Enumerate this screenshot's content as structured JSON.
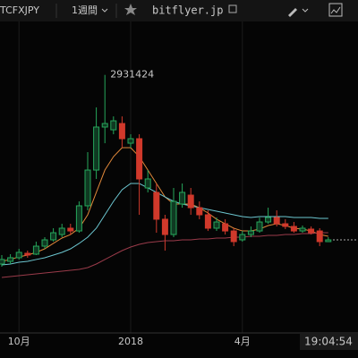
{
  "toolbar": {
    "symbol": "TCFXJPY",
    "interval": "1週間",
    "source": "bitflyer.jp"
  },
  "chart_data": {
    "type": "candlestick",
    "categories": [
      null,
      null,
      "10月",
      null,
      null,
      null,
      null,
      null,
      null,
      null,
      null,
      null,
      null,
      null,
      null,
      "2018",
      null,
      null,
      null,
      null,
      null,
      null,
      null,
      null,
      null,
      null,
      null,
      null,
      "4月",
      null,
      null,
      null,
      null,
      null,
      null,
      null,
      null,
      null,
      null
    ],
    "open": [
      381000,
      417000,
      466000,
      526000,
      514000,
      622000,
      707000,
      779000,
      864000,
      827000,
      1166000,
      1648000,
      2228000,
      2191000,
      2276000,
      2010000,
      2071000,
      1407000,
      1347000,
      985000,
      779000,
      1190000,
      1310000,
      1141000,
      1045000,
      864000,
      924000,
      827000,
      707000,
      779000,
      827000,
      948000,
      1009000,
      924000,
      888000,
      827000,
      852000,
      827000,
      683000
    ],
    "high": [
      502000,
      514000,
      586000,
      562000,
      683000,
      743000,
      864000,
      924000,
      924000,
      1226000,
      1890000,
      2493000,
      2931424,
      2372000,
      2372000,
      2131000,
      2131000,
      1648000,
      1467000,
      1045000,
      1407000,
      1467000,
      1407000,
      1226000,
      1105000,
      1009000,
      985000,
      864000,
      827000,
      888000,
      1009000,
      1141000,
      1105000,
      985000,
      948000,
      900000,
      888000,
      864000,
      743000
    ],
    "low": [
      345000,
      381000,
      442000,
      466000,
      502000,
      586000,
      683000,
      743000,
      779000,
      803000,
      1105000,
      1528000,
      2010000,
      2131000,
      1950000,
      1950000,
      1045000,
      1347000,
      803000,
      562000,
      743000,
      1141000,
      1045000,
      985000,
      827000,
      827000,
      779000,
      622000,
      683000,
      743000,
      803000,
      924000,
      888000,
      852000,
      803000,
      803000,
      779000,
      622000,
      683000
    ],
    "close": [
      442000,
      466000,
      538000,
      502000,
      622000,
      707000,
      803000,
      864000,
      827000,
      1166000,
      1648000,
      2228000,
      2276000,
      2312000,
      2071000,
      2071000,
      1528000,
      1528000,
      985000,
      779000,
      1226000,
      1347000,
      1141000,
      1045000,
      864000,
      948000,
      827000,
      683000,
      779000,
      827000,
      948000,
      1009000,
      924000,
      888000,
      827000,
      864000,
      803000,
      683000,
      707000
    ],
    "up_color": "#26a65b",
    "down_color": "#d0392b",
    "series": [
      {
        "color": "#e0883a",
        "values": [
          417000,
          442000,
          478000,
          502000,
          538000,
          586000,
          659000,
          731000,
          779000,
          864000,
          1045000,
          1347000,
          1648000,
          1829000,
          1950000,
          1950000,
          1829000,
          1648000,
          1467000,
          1286000,
          1190000,
          1190000,
          1190000,
          1141000,
          1069000,
          985000,
          924000,
          864000,
          827000,
          827000,
          852000,
          900000,
          924000,
          900000,
          864000,
          852000,
          827000,
          779000,
          755000
        ]
      },
      {
        "color": "#6cc6d0",
        "values": [
          369000,
          381000,
          405000,
          417000,
          442000,
          466000,
          502000,
          538000,
          586000,
          659000,
          743000,
          864000,
          1045000,
          1226000,
          1383000,
          1467000,
          1467000,
          1407000,
          1347000,
          1286000,
          1226000,
          1190000,
          1166000,
          1141000,
          1117000,
          1093000,
          1069000,
          1045000,
          1021000,
          1009000,
          1021000,
          1021000,
          1021000,
          1021000,
          1009000,
          1009000,
          1009000,
          997000,
          997000
        ]
      },
      {
        "color": "#9a3b4a",
        "values": [
          200000,
          212000,
          224000,
          236000,
          248000,
          260000,
          273000,
          285000,
          297000,
          309000,
          333000,
          381000,
          442000,
          502000,
          562000,
          610000,
          647000,
          671000,
          683000,
          695000,
          695000,
          707000,
          707000,
          719000,
          719000,
          731000,
          731000,
          743000,
          743000,
          755000,
          755000,
          767000,
          767000,
          779000,
          779000,
          791000,
          791000,
          803000,
          803000
        ]
      }
    ],
    "ylim": [
      -500000,
      3700000
    ],
    "countdown": "19:04:54"
  }
}
